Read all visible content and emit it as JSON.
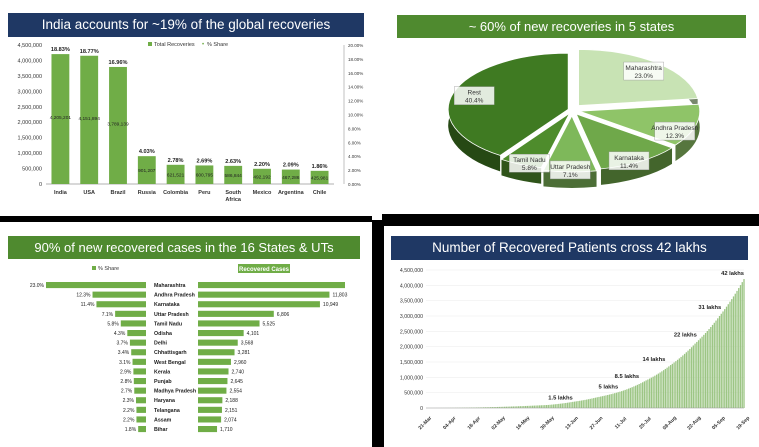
{
  "chart_data": [
    {
      "type": "bar",
      "title": "India accounts for ~19% of the global recoveries",
      "categories": [
        "India",
        "USA",
        "Brazil",
        "Russia",
        "Colombia",
        "Peru",
        "South Africa",
        "Mexico",
        "Argentina",
        "Chile"
      ],
      "series": [
        {
          "name": "Total Recoveries",
          "values": [
            4205201,
            4151894,
            3789139,
            901207,
            621521,
            600795,
            586844,
            492192,
            467286,
            425981
          ]
        },
        {
          "name": "% Share",
          "values": [
            18.83,
            18.77,
            16.96,
            4.03,
            2.78,
            2.69,
            2.63,
            2.2,
            2.09,
            1.86
          ]
        }
      ],
      "value_labels": [
        "4,205,201",
        "4,151,894",
        "3,789,139",
        "901,207",
        "621,521",
        "600,795",
        "586,844",
        "492,192",
        "467,286",
        "425,981"
      ],
      "share_labels": [
        "18.83%",
        "18.77%",
        "16.96%",
        "4.03%",
        "2.78%",
        "2.69%",
        "2.63%",
        "2.20%",
        "2.09%",
        "1.86%"
      ],
      "ylim": [
        0,
        4500000
      ],
      "y_ticks": [
        "0",
        "500,000",
        "1,000,000",
        "1,500,000",
        "2,000,000",
        "2,500,000",
        "3,000,000",
        "3,500,000",
        "4,000,000",
        "4,500,000"
      ],
      "y2lim": [
        0,
        20
      ],
      "y2_ticks": [
        "0.00%",
        "2.00%",
        "4.00%",
        "6.00%",
        "8.00%",
        "10.00%",
        "12.00%",
        "14.00%",
        "16.00%",
        "18.00%",
        "20.00%"
      ],
      "legend": "top-center",
      "colors": {
        "bar": "#70ad47",
        "title_bg": "#1f3864"
      }
    },
    {
      "type": "pie",
      "title": "~ 60% of new recoveries in 5 states",
      "categories": [
        "Maharashtra",
        "Andhra Pradesh",
        "Karnataka",
        "Uttar Pradesh",
        "Tamil Nadu",
        "Rest"
      ],
      "values": [
        23.0,
        12.3,
        11.4,
        7.1,
        5.8,
        40.4
      ],
      "value_labels": [
        "23.0%",
        "12.3%",
        "11.4%",
        "7.1%",
        "5.8%",
        "40.4%"
      ],
      "colors": {
        "title_bg": "#4f8a2f",
        "slices": [
          "#c8e3b4",
          "#8fc468",
          "#6fa84a",
          "#7eb85a",
          "#4e8c2c",
          "#3f7a22"
        ]
      }
    },
    {
      "type": "bar",
      "title": "90% of new recovered cases in the 16 States & UTs",
      "categories": [
        "Maharashtra",
        "Andhra Pradesh",
        "Karnataka",
        "Uttar Pradesh",
        "Tamil Nadu",
        "Odisha",
        "Delhi",
        "Chhattisgarh",
        "West Bengal",
        "Kerala",
        "Punjab",
        "Madhya Pradesh",
        "Haryana",
        "Telangana",
        "Assam",
        "Bihar"
      ],
      "series": [
        {
          "name": "% Share",
          "values": [
            23.0,
            12.3,
            11.4,
            7.1,
            5.8,
            4.3,
            3.7,
            3.4,
            3.1,
            2.9,
            2.8,
            2.7,
            2.3,
            2.2,
            2.2,
            1.8
          ]
        },
        {
          "name": "Recovered Cases",
          "values": [
            null,
            11803,
            10949,
            6806,
            5525,
            4101,
            3568,
            3281,
            2960,
            2740,
            2645,
            2554,
            2188,
            2151,
            2074,
            1710
          ]
        }
      ],
      "share_labels": [
        "23.0%",
        "12.3%",
        "11.4%",
        "7.1%",
        "5.8%",
        "4.3%",
        "3.7%",
        "3.4%",
        "3.1%",
        "2.9%",
        "2.8%",
        "2.7%",
        "2.3%",
        "2.2%",
        "2.2%",
        "1.8%"
      ],
      "case_labels": [
        "",
        "11,803",
        "10,949",
        "6,806",
        "5,525",
        "4,101",
        "3,568",
        "3,281",
        "2,960",
        "2,740",
        "2,645",
        "2,554",
        "2,188",
        "2,151",
        "2,074",
        "1,710"
      ],
      "colors": {
        "bar": "#70ad47",
        "title_bg": "#4f8a2f"
      }
    },
    {
      "type": "bar",
      "title": "Number of Recovered Patients cross 42 lakhs",
      "x_ticks": [
        "21-Mar",
        "04-Apr",
        "18-Apr",
        "02-May",
        "16-May",
        "30-May",
        "13-Jun",
        "27-Jun",
        "11-Jul",
        "25-Jul",
        "08-Aug",
        "22-Aug",
        "05-Sep",
        "19-Sep"
      ],
      "y_ticks": [
        "0",
        "500,000",
        "1,000,000",
        "1,500,000",
        "2,000,000",
        "2,500,000",
        "3,000,000",
        "3,500,000",
        "4,000,000",
        "4,500,000"
      ],
      "ylim": [
        0,
        4500000
      ],
      "series": [
        {
          "name": "Recovered Patients",
          "x": [
            "21-Mar",
            "30-May",
            "13-Jun",
            "27-Jun",
            "11-Jul",
            "25-Jul",
            "08-Aug",
            "22-Aug",
            "05-Sep",
            "19-Sep"
          ],
          "values": [
            0,
            100000,
            200000,
            350000,
            550000,
            900000,
            1400000,
            2100000,
            3000000,
            4205000
          ]
        }
      ],
      "annotations": [
        {
          "text": "1.5 lakhs",
          "x": "13-Jun",
          "y": 150000
        },
        {
          "text": "5 lakhs",
          "x": "09-Jul",
          "y": 500000
        },
        {
          "text": "8.5 lakhs",
          "x": "21-Jul",
          "y": 850000
        },
        {
          "text": "14 lakhs",
          "x": "05-Aug",
          "y": 1400000
        },
        {
          "text": "22 lakhs",
          "x": "23-Aug",
          "y": 2200000
        },
        {
          "text": "31 lakhs",
          "x": "06-Sep",
          "y": 3100000
        },
        {
          "text": "42 lakhs",
          "x": "19-Sep",
          "y": 4200000
        }
      ],
      "colors": {
        "bar": "#9cc584",
        "title_bg": "#1f3864"
      }
    }
  ]
}
